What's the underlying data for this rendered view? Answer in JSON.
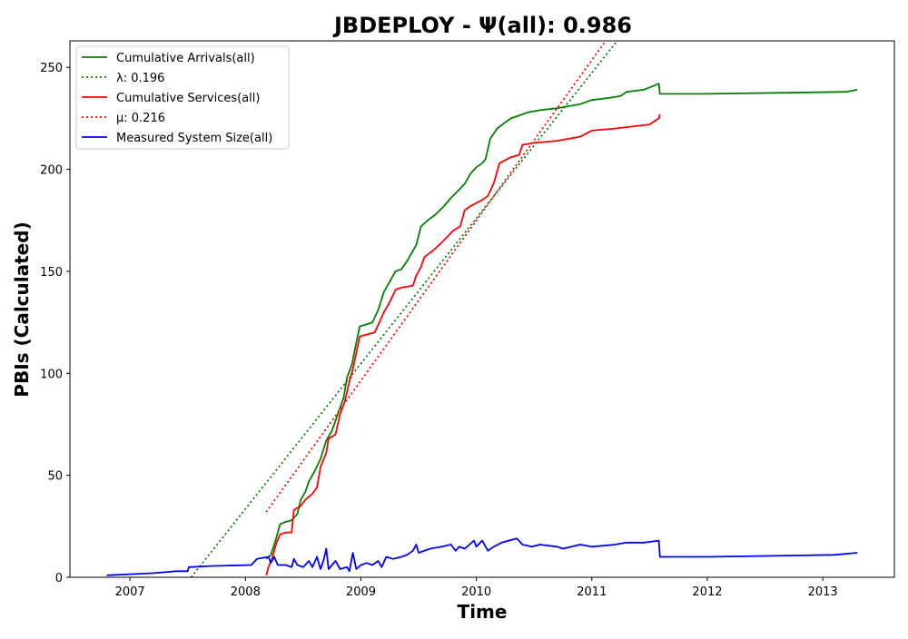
{
  "chart_data": {
    "type": "line",
    "title": "JBDEPLOY -  Ψ(all): 0.986",
    "xlabel": "Time",
    "ylabel": "PBIs (Calculated)",
    "xlim": [
      2006.48,
      2013.62
    ],
    "ylim": [
      0,
      263
    ],
    "x_ticks": [
      2007,
      2008,
      2009,
      2010,
      2011,
      2012,
      2013
    ],
    "x_tick_labels": [
      "2007",
      "2008",
      "2009",
      "2010",
      "2011",
      "2012",
      "2013"
    ],
    "y_ticks": [
      0,
      50,
      100,
      150,
      200,
      250
    ],
    "y_tick_labels": [
      "0",
      "50",
      "100",
      "150",
      "200",
      "250"
    ],
    "grid": false,
    "legend_position": "top-left",
    "series": [
      {
        "name": "Cumulative Arrivals(all)",
        "color": "#008000",
        "style": "solid",
        "points": [
          [
            2008.18,
            9
          ],
          [
            2008.22,
            11
          ],
          [
            2008.26,
            18
          ],
          [
            2008.3,
            26
          ],
          [
            2008.34,
            27
          ],
          [
            2008.4,
            28
          ],
          [
            2008.45,
            31
          ],
          [
            2008.48,
            38
          ],
          [
            2008.52,
            42
          ],
          [
            2008.55,
            47
          ],
          [
            2008.6,
            52
          ],
          [
            2008.65,
            58
          ],
          [
            2008.7,
            67
          ],
          [
            2008.75,
            72
          ],
          [
            2008.8,
            80
          ],
          [
            2008.85,
            88
          ],
          [
            2008.88,
            98
          ],
          [
            2008.92,
            104
          ],
          [
            2008.96,
            115
          ],
          [
            2008.99,
            123
          ],
          [
            2009.05,
            124
          ],
          [
            2009.1,
            125
          ],
          [
            2009.15,
            131
          ],
          [
            2009.2,
            140
          ],
          [
            2009.25,
            145
          ],
          [
            2009.3,
            150
          ],
          [
            2009.35,
            151
          ],
          [
            2009.4,
            155
          ],
          [
            2009.45,
            160
          ],
          [
            2009.48,
            163
          ],
          [
            2009.52,
            172
          ],
          [
            2009.58,
            175
          ],
          [
            2009.65,
            178
          ],
          [
            2009.72,
            182
          ],
          [
            2009.78,
            186
          ],
          [
            2009.85,
            190
          ],
          [
            2009.9,
            193
          ],
          [
            2009.95,
            198
          ],
          [
            2010.0,
            201
          ],
          [
            2010.05,
            203
          ],
          [
            2010.08,
            205
          ],
          [
            2010.12,
            215
          ],
          [
            2010.18,
            220
          ],
          [
            2010.25,
            223
          ],
          [
            2010.3,
            225
          ],
          [
            2010.35,
            226
          ],
          [
            2010.45,
            228
          ],
          [
            2010.55,
            229
          ],
          [
            2010.7,
            230
          ],
          [
            2010.9,
            232
          ],
          [
            2011.0,
            234
          ],
          [
            2011.15,
            235
          ],
          [
            2011.25,
            236
          ],
          [
            2011.3,
            238
          ],
          [
            2011.45,
            239
          ],
          [
            2011.58,
            242
          ],
          [
            2011.59,
            237
          ],
          [
            2012.0,
            237
          ],
          [
            2013.2,
            238
          ],
          [
            2013.3,
            239
          ]
        ]
      },
      {
        "name": "λ: 0.196",
        "color": "#008000",
        "style": "dotted",
        "points": [
          [
            2007.53,
            0
          ],
          [
            2011.22,
            263
          ]
        ]
      },
      {
        "name": "Cumulative Services(all)",
        "color": "#ff0000",
        "style": "solid",
        "points": [
          [
            2008.18,
            1
          ],
          [
            2008.2,
            5
          ],
          [
            2008.23,
            9
          ],
          [
            2008.27,
            17
          ],
          [
            2008.3,
            21
          ],
          [
            2008.35,
            22
          ],
          [
            2008.4,
            22
          ],
          [
            2008.42,
            33
          ],
          [
            2008.48,
            35
          ],
          [
            2008.52,
            38
          ],
          [
            2008.58,
            41
          ],
          [
            2008.62,
            44
          ],
          [
            2008.65,
            54
          ],
          [
            2008.7,
            61
          ],
          [
            2008.72,
            68
          ],
          [
            2008.78,
            70
          ],
          [
            2008.82,
            80
          ],
          [
            2008.86,
            86
          ],
          [
            2008.9,
            96
          ],
          [
            2008.93,
            102
          ],
          [
            2008.96,
            110
          ],
          [
            2008.99,
            118
          ],
          [
            2009.05,
            119
          ],
          [
            2009.12,
            120
          ],
          [
            2009.2,
            130
          ],
          [
            2009.25,
            135
          ],
          [
            2009.3,
            141
          ],
          [
            2009.35,
            142
          ],
          [
            2009.45,
            143
          ],
          [
            2009.48,
            148
          ],
          [
            2009.52,
            152
          ],
          [
            2009.55,
            157
          ],
          [
            2009.62,
            160
          ],
          [
            2009.68,
            163
          ],
          [
            2009.75,
            167
          ],
          [
            2009.8,
            170
          ],
          [
            2009.86,
            172
          ],
          [
            2009.9,
            180
          ],
          [
            2009.95,
            182
          ],
          [
            2010.05,
            185
          ],
          [
            2010.1,
            187
          ],
          [
            2010.15,
            193
          ],
          [
            2010.2,
            203
          ],
          [
            2010.3,
            206
          ],
          [
            2010.37,
            207
          ],
          [
            2010.4,
            212
          ],
          [
            2010.5,
            213
          ],
          [
            2010.7,
            214
          ],
          [
            2010.9,
            216
          ],
          [
            2011.0,
            219
          ],
          [
            2011.2,
            220
          ],
          [
            2011.5,
            222
          ],
          [
            2011.58,
            225
          ],
          [
            2011.59,
            227
          ]
        ]
      },
      {
        "name": "μ: 0.216",
        "color": "#ff0000",
        "style": "dotted",
        "points": [
          [
            2008.18,
            32
          ],
          [
            2011.12,
            263
          ]
        ]
      },
      {
        "name": "Measured System Size(all)",
        "color": "#0000ff",
        "style": "solid",
        "points": [
          [
            2006.8,
            1
          ],
          [
            2007.0,
            1.5
          ],
          [
            2007.2,
            2
          ],
          [
            2007.4,
            3
          ],
          [
            2007.5,
            3
          ],
          [
            2007.51,
            5
          ],
          [
            2007.7,
            5.5
          ],
          [
            2008.05,
            6
          ],
          [
            2008.1,
            9
          ],
          [
            2008.2,
            10
          ],
          [
            2008.22,
            7
          ],
          [
            2008.25,
            10
          ],
          [
            2008.28,
            6
          ],
          [
            2008.35,
            6
          ],
          [
            2008.4,
            5
          ],
          [
            2008.42,
            9
          ],
          [
            2008.45,
            6
          ],
          [
            2008.5,
            5
          ],
          [
            2008.55,
            8
          ],
          [
            2008.58,
            5
          ],
          [
            2008.62,
            10
          ],
          [
            2008.65,
            4
          ],
          [
            2008.68,
            9
          ],
          [
            2008.7,
            14
          ],
          [
            2008.72,
            4
          ],
          [
            2008.78,
            8
          ],
          [
            2008.82,
            4
          ],
          [
            2008.88,
            5
          ],
          [
            2008.9,
            3
          ],
          [
            2008.93,
            12
          ],
          [
            2008.96,
            4
          ],
          [
            2009.0,
            6
          ],
          [
            2009.05,
            7
          ],
          [
            2009.1,
            6
          ],
          [
            2009.15,
            8
          ],
          [
            2009.18,
            5
          ],
          [
            2009.22,
            10
          ],
          [
            2009.28,
            9
          ],
          [
            2009.35,
            10
          ],
          [
            2009.4,
            11
          ],
          [
            2009.45,
            13
          ],
          [
            2009.48,
            16
          ],
          [
            2009.5,
            12
          ],
          [
            2009.6,
            14
          ],
          [
            2009.7,
            15
          ],
          [
            2009.78,
            16
          ],
          [
            2009.82,
            13
          ],
          [
            2009.85,
            15
          ],
          [
            2009.9,
            14
          ],
          [
            2009.98,
            18
          ],
          [
            2010.0,
            15
          ],
          [
            2010.05,
            18
          ],
          [
            2010.1,
            13
          ],
          [
            2010.15,
            15
          ],
          [
            2010.22,
            17
          ],
          [
            2010.28,
            18
          ],
          [
            2010.35,
            19
          ],
          [
            2010.4,
            16
          ],
          [
            2010.48,
            15
          ],
          [
            2010.55,
            16
          ],
          [
            2010.7,
            15
          ],
          [
            2010.75,
            14
          ],
          [
            2010.9,
            16
          ],
          [
            2011.0,
            15
          ],
          [
            2011.2,
            16
          ],
          [
            2011.3,
            17
          ],
          [
            2011.45,
            17
          ],
          [
            2011.58,
            18
          ],
          [
            2011.59,
            10
          ],
          [
            2012.0,
            10
          ],
          [
            2013.1,
            11
          ],
          [
            2013.3,
            12
          ]
        ]
      }
    ]
  }
}
